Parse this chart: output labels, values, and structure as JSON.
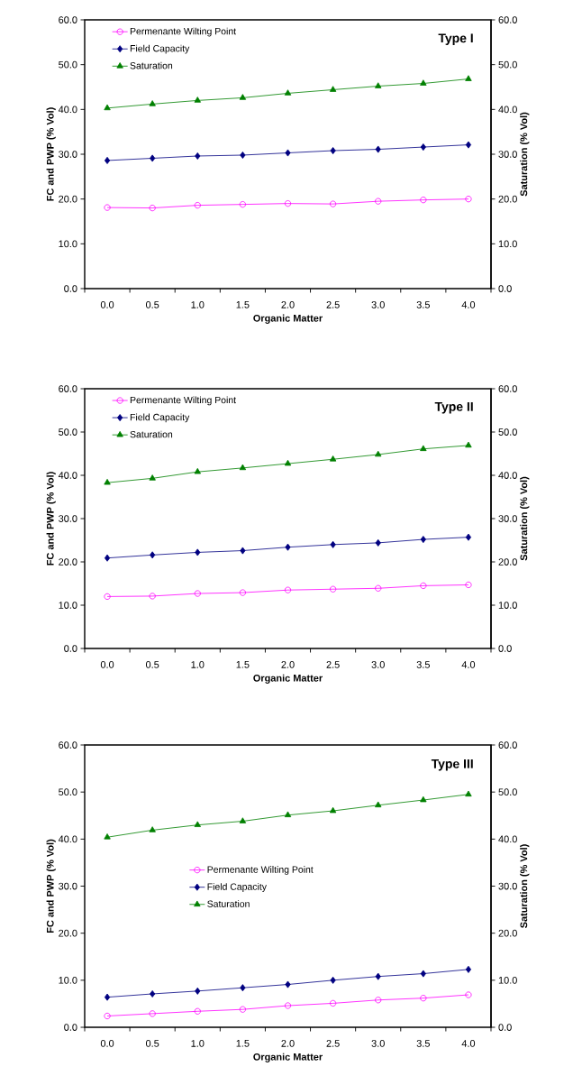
{
  "chart_data": [
    {
      "type": "line",
      "title": "Type I",
      "xlabel": "Organic Matter",
      "ylabel": "FC and PWP (% Vol)",
      "y2label": "Saturation (% Vol)",
      "legend": "top left",
      "categories": [
        "0.0",
        "0.5",
        "1.0",
        "1.5",
        "2.0",
        "2.5",
        "3.0",
        "3.5",
        "4.0"
      ],
      "series": [
        {
          "name": "Permenante Wilting Point",
          "color": "#ff00ff",
          "marker": "circle",
          "values": [
            18.1,
            18.0,
            18.6,
            18.8,
            19.0,
            18.9,
            19.5,
            19.8,
            20.0
          ]
        },
        {
          "name": "Field Capacity",
          "color": "#000080",
          "marker": "diamond",
          "values": [
            28.6,
            29.1,
            29.6,
            29.8,
            30.3,
            30.8,
            31.1,
            31.6,
            32.1
          ]
        },
        {
          "name": "Saturation",
          "color": "#008000",
          "marker": "triangle",
          "axis": "y2",
          "values": [
            40.3,
            41.2,
            42.0,
            42.6,
            43.6,
            44.4,
            45.2,
            45.8,
            46.8
          ]
        }
      ],
      "ylim": [
        0,
        60
      ],
      "yticks": [
        {
          "value": 0,
          "label": "0.0"
        },
        {
          "value": 10,
          "label": "10.0"
        },
        {
          "value": 20,
          "label": "20.0"
        },
        {
          "value": 30,
          "label": "30.0"
        },
        {
          "value": 40,
          "label": "40.0"
        },
        {
          "value": 50,
          "label": "50.0"
        },
        {
          "value": 60,
          "label": "60.0"
        }
      ],
      "y2lim": [
        0,
        60
      ],
      "y2ticks": [
        {
          "value": 0,
          "label": "0.0"
        },
        {
          "value": 10,
          "label": "10.0"
        },
        {
          "value": 20,
          "label": "20.0"
        },
        {
          "value": 30,
          "label": "30.0"
        },
        {
          "value": 40,
          "label": "40.0"
        },
        {
          "value": 50,
          "label": "50.0"
        },
        {
          "value": 60,
          "label": "60.0"
        }
      ]
    },
    {
      "type": "line",
      "title": "Type II",
      "xlabel": "Organic Matter",
      "ylabel": "FC and PWP (% Vol)",
      "y2label": "Saturation (% Vol)",
      "legend": "top left",
      "categories": [
        "0.0",
        "0.5",
        "1.0",
        "1.5",
        "2.0",
        "2.5",
        "3.0",
        "3.5",
        "4.0"
      ],
      "series": [
        {
          "name": "Permenante Wilting Point",
          "color": "#ff00ff",
          "marker": "circle",
          "values": [
            12.0,
            12.1,
            12.7,
            12.9,
            13.5,
            13.7,
            13.9,
            14.5,
            14.7
          ]
        },
        {
          "name": "Field Capacity",
          "color": "#000080",
          "marker": "diamond",
          "values": [
            20.9,
            21.6,
            22.2,
            22.6,
            23.4,
            24.0,
            24.4,
            25.2,
            25.7
          ]
        },
        {
          "name": "Saturation",
          "color": "#008000",
          "marker": "triangle",
          "axis": "y2",
          "values": [
            38.3,
            39.3,
            40.8,
            41.7,
            42.7,
            43.7,
            44.8,
            46.1,
            46.9
          ]
        }
      ],
      "ylim": [
        0,
        60
      ],
      "yticks": [
        {
          "value": 0,
          "label": "0.0"
        },
        {
          "value": 10,
          "label": "10.0"
        },
        {
          "value": 20,
          "label": "20.0"
        },
        {
          "value": 30,
          "label": "30.0"
        },
        {
          "value": 40,
          "label": "40.0"
        },
        {
          "value": 50,
          "label": "50.0"
        },
        {
          "value": 60,
          "label": "60.0"
        }
      ],
      "y2lim": [
        0,
        60
      ],
      "y2ticks": [
        {
          "value": 0,
          "label": "0.0"
        },
        {
          "value": 10,
          "label": "10.0"
        },
        {
          "value": 20,
          "label": "20.0"
        },
        {
          "value": 30,
          "label": "30.0"
        },
        {
          "value": 40,
          "label": "40.0"
        },
        {
          "value": 50,
          "label": "50.0"
        },
        {
          "value": 60,
          "label": "60.0"
        }
      ]
    },
    {
      "type": "line",
      "title": "Type III",
      "xlabel": "Organic Matter",
      "ylabel": "FC and PWP (% Vol)",
      "y2label": "Saturation (% Vol)",
      "legend": "center",
      "categories": [
        "0.0",
        "0.5",
        "1.0",
        "1.5",
        "2.0",
        "2.5",
        "3.0",
        "3.5",
        "4.0"
      ],
      "series": [
        {
          "name": "Permenante Wilting Point",
          "color": "#ff00ff",
          "marker": "circle",
          "values": [
            2.4,
            2.9,
            3.4,
            3.8,
            4.6,
            5.1,
            5.8,
            6.2,
            6.9
          ]
        },
        {
          "name": "Field Capacity",
          "color": "#000080",
          "marker": "diamond",
          "values": [
            6.4,
            7.1,
            7.7,
            8.4,
            9.1,
            10.0,
            10.8,
            11.4,
            12.3
          ]
        },
        {
          "name": "Saturation",
          "color": "#008000",
          "marker": "triangle",
          "axis": "y2",
          "values": [
            40.4,
            41.9,
            43.0,
            43.8,
            45.1,
            46.0,
            47.2,
            48.3,
            49.5
          ]
        }
      ],
      "ylim": [
        0,
        60
      ],
      "yticks": [
        {
          "value": 0,
          "label": "0.0"
        },
        {
          "value": 10,
          "label": "10.0"
        },
        {
          "value": 20,
          "label": "20.0"
        },
        {
          "value": 30,
          "label": "30.0"
        },
        {
          "value": 40,
          "label": "40.0"
        },
        {
          "value": 50,
          "label": "50.0"
        },
        {
          "value": 60,
          "label": "60.0"
        }
      ],
      "y2lim": [
        0,
        60
      ],
      "y2ticks": [
        {
          "value": 0,
          "label": "0.0"
        },
        {
          "value": 10,
          "label": "10.0"
        },
        {
          "value": 20,
          "label": "20.0"
        },
        {
          "value": 30,
          "label": "30.0"
        },
        {
          "value": 40,
          "label": "40.0"
        },
        {
          "value": 50,
          "label": "50.0"
        },
        {
          "value": 60,
          "label": "60.0"
        }
      ]
    }
  ]
}
